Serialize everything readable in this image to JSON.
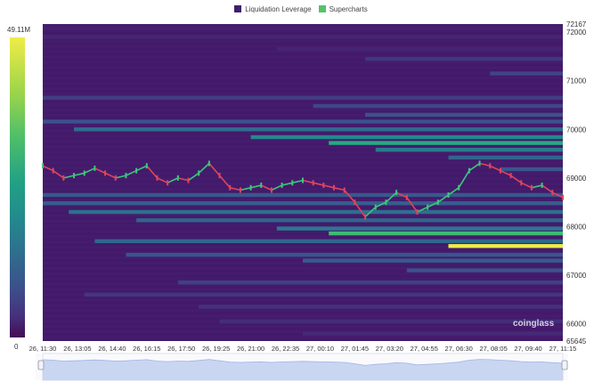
{
  "legend": {
    "items": [
      {
        "label": "Liquidation Leverage",
        "color": "#3b1f6e"
      },
      {
        "label": "Supercharts",
        "color": "#56c26a"
      }
    ]
  },
  "colorbar": {
    "max_label": "49.11M",
    "min_label": "0"
  },
  "watermark": "coinglass",
  "chart_data": {
    "type": "heatmap",
    "title": "",
    "xlabel": "",
    "ylabel": "",
    "ylim": [
      65645,
      72167
    ],
    "y_ticks": [
      {
        "value": 72167,
        "label": "72167"
      },
      {
        "value": 72000,
        "label": "72000"
      },
      {
        "value": 71000,
        "label": "71000"
      },
      {
        "value": 70000,
        "label": "70000"
      },
      {
        "value": 69000,
        "label": "69000"
      },
      {
        "value": 68000,
        "label": "68000"
      },
      {
        "value": 67000,
        "label": "67000"
      },
      {
        "value": 66000,
        "label": "66000"
      },
      {
        "value": 65645,
        "label": "65645"
      }
    ],
    "x_ticks": [
      "26, 11:30",
      "26, 13:05",
      "26, 14:40",
      "26, 16:15",
      "26, 17:50",
      "26, 19:25",
      "26, 21:00",
      "26, 22:35",
      "27, 00:10",
      "27, 01:45",
      "27, 03:20",
      "27, 04:55",
      "27, 06:30",
      "27, 08:05",
      "27, 09:40",
      "27, 11:15"
    ],
    "colorscale": {
      "min": 0,
      "max": 49110000,
      "min_label": "0",
      "max_label": "49.11M"
    },
    "liquidation_bands": [
      {
        "price": 72080,
        "start": 0.0,
        "intensity": 0.1
      },
      {
        "price": 71900,
        "start": 0.0,
        "intensity": 0.13
      },
      {
        "price": 71650,
        "start": 0.45,
        "intensity": 0.12
      },
      {
        "price": 71450,
        "start": 0.62,
        "intensity": 0.2
      },
      {
        "price": 71150,
        "start": 0.86,
        "intensity": 0.25
      },
      {
        "price": 70650,
        "start": 0.0,
        "intensity": 0.22
      },
      {
        "price": 70480,
        "start": 0.52,
        "intensity": 0.26
      },
      {
        "price": 70300,
        "start": 0.62,
        "intensity": 0.3
      },
      {
        "price": 70160,
        "start": 0.0,
        "intensity": 0.3
      },
      {
        "price": 70000,
        "start": 0.06,
        "intensity": 0.42
      },
      {
        "price": 69840,
        "start": 0.4,
        "intensity": 0.55
      },
      {
        "price": 69720,
        "start": 0.55,
        "intensity": 0.7
      },
      {
        "price": 69580,
        "start": 0.64,
        "intensity": 0.5
      },
      {
        "price": 69420,
        "start": 0.78,
        "intensity": 0.38
      },
      {
        "price": 69180,
        "start": 0.88,
        "intensity": 0.32
      },
      {
        "price": 68650,
        "start": 0.0,
        "intensity": 0.33
      },
      {
        "price": 68480,
        "start": 0.0,
        "intensity": 0.36
      },
      {
        "price": 68300,
        "start": 0.05,
        "intensity": 0.44
      },
      {
        "price": 68130,
        "start": 0.18,
        "intensity": 0.38
      },
      {
        "price": 67960,
        "start": 0.45,
        "intensity": 0.48
      },
      {
        "price": 67860,
        "start": 0.55,
        "intensity": 0.78
      },
      {
        "price": 67700,
        "start": 0.1,
        "intensity": 0.4
      },
      {
        "price": 67600,
        "start": 0.78,
        "intensity": 1.0
      },
      {
        "price": 67420,
        "start": 0.16,
        "intensity": 0.32
      },
      {
        "price": 67300,
        "start": 0.5,
        "intensity": 0.34
      },
      {
        "price": 67100,
        "start": 0.7,
        "intensity": 0.3
      },
      {
        "price": 66850,
        "start": 0.26,
        "intensity": 0.24
      },
      {
        "price": 66600,
        "start": 0.08,
        "intensity": 0.2
      },
      {
        "price": 66350,
        "start": 0.3,
        "intensity": 0.18
      },
      {
        "price": 66050,
        "start": 0.34,
        "intensity": 0.16
      },
      {
        "price": 65800,
        "start": 0.5,
        "intensity": 0.15
      }
    ],
    "price_series": {
      "name": "",
      "x": [
        0.0,
        0.02,
        0.04,
        0.06,
        0.08,
        0.1,
        0.12,
        0.14,
        0.16,
        0.18,
        0.2,
        0.22,
        0.24,
        0.26,
        0.28,
        0.3,
        0.32,
        0.34,
        0.36,
        0.38,
        0.4,
        0.42,
        0.44,
        0.46,
        0.48,
        0.5,
        0.52,
        0.54,
        0.56,
        0.58,
        0.6,
        0.62,
        0.64,
        0.66,
        0.68,
        0.7,
        0.72,
        0.74,
        0.76,
        0.78,
        0.8,
        0.82,
        0.84,
        0.86,
        0.88,
        0.9,
        0.92,
        0.94,
        0.96,
        0.98,
        1.0
      ],
      "y": [
        69250,
        69150,
        69000,
        69050,
        69100,
        69200,
        69100,
        69000,
        69050,
        69150,
        69250,
        69000,
        68900,
        69000,
        68950,
        69100,
        69300,
        69050,
        68800,
        68750,
        68800,
        68850,
        68750,
        68850,
        68900,
        68950,
        68900,
        68850,
        68800,
        68750,
        68500,
        68200,
        68400,
        68500,
        68700,
        68600,
        68300,
        68400,
        68500,
        68650,
        68800,
        69150,
        69300,
        69250,
        69150,
        69050,
        68900,
        68800,
        68850,
        68700,
        68600
      ]
    }
  }
}
